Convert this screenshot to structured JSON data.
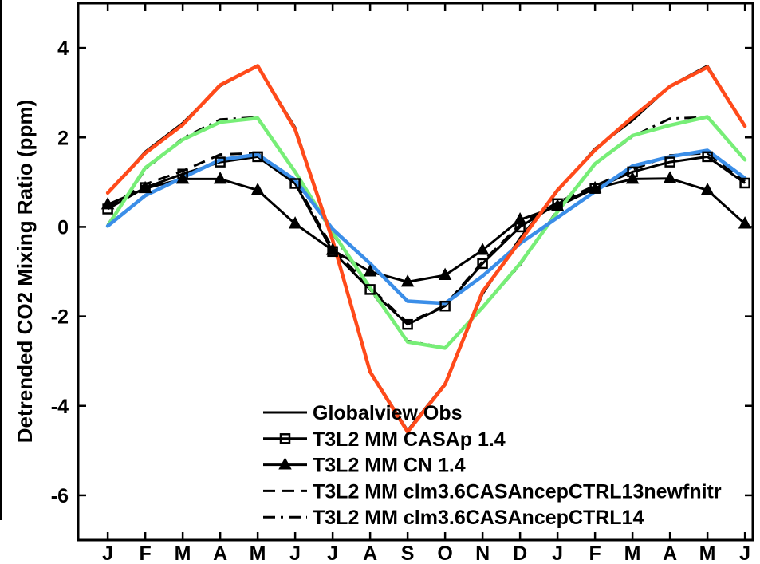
{
  "chart_data": {
    "type": "line",
    "categories": [
      "J",
      "F",
      "M",
      "A",
      "M",
      "J",
      "J",
      "A",
      "S",
      "O",
      "N",
      "D",
      "J",
      "F",
      "M",
      "A",
      "M",
      "J"
    ],
    "ylabel": "Detrended CO2 Mixing Ratio (ppm)",
    "ylim": [
      -7,
      5
    ],
    "yticks": [
      -6,
      -4,
      -2,
      0,
      2,
      4
    ],
    "grid": false,
    "legend": "lower-right",
    "series": [
      {
        "name": "Globalview Obs",
        "color": "#000000",
        "line_style": "solid",
        "marker": "none",
        "values": [
          0.75,
          1.68,
          2.32,
          3.15,
          3.6,
          2.22,
          -0.28,
          -3.22,
          -4.55,
          -3.5,
          -1.5,
          -0.25,
          0.8,
          1.75,
          2.38,
          3.15,
          3.6,
          2.25
        ]
      },
      {
        "name": "T3L2 MM CASAp 1.4",
        "color": "#000000",
        "line_style": "solid",
        "marker": "square",
        "values": [
          0.4,
          0.88,
          1.18,
          1.45,
          1.57,
          0.97,
          -0.55,
          -1.4,
          -2.18,
          -1.77,
          -0.82,
          0.0,
          0.52,
          0.86,
          1.23,
          1.45,
          1.57,
          0.98
        ]
      },
      {
        "name": "T3L2 MM CN 1.4",
        "color": "#000000",
        "line_style": "solid",
        "marker": "triangle",
        "values": [
          0.5,
          0.86,
          1.07,
          1.07,
          0.82,
          0.07,
          -0.52,
          -1.0,
          -1.23,
          -1.08,
          -0.52,
          0.16,
          0.46,
          0.86,
          1.07,
          1.08,
          0.82,
          0.07
        ]
      },
      {
        "name": "T3L2 MM clm3.6CASAncepCTRL13newfnitr",
        "color": "#000000",
        "line_style": "dashed",
        "marker": "none",
        "values": [
          0.45,
          0.95,
          1.25,
          1.62,
          1.65,
          1.02,
          -0.48,
          -1.35,
          -2.15,
          -1.75,
          -0.78,
          0.05,
          0.55,
          0.92,
          1.28,
          1.6,
          1.65,
          1.02
        ]
      },
      {
        "name": "T3L2 MM clm3.6CASAncepCTRL14",
        "color": "#000000",
        "line_style": "dashdot",
        "marker": "none",
        "values": [
          0.05,
          1.28,
          1.98,
          2.4,
          2.45,
          1.22,
          -0.15,
          -1.4,
          -2.55,
          -2.7,
          -1.8,
          -0.85,
          0.38,
          1.4,
          2.02,
          2.42,
          2.45,
          1.5
        ]
      },
      {
        "color": "#77ee77",
        "line_style": "solid",
        "marker": "none",
        "values": [
          0.02,
          1.32,
          1.95,
          2.34,
          2.43,
          1.23,
          -0.12,
          -1.36,
          -2.57,
          -2.71,
          -1.8,
          -0.82,
          0.34,
          1.41,
          2.04,
          2.27,
          2.46,
          1.5
        ]
      },
      {
        "color": "#3b8ee8",
        "line_style": "solid",
        "marker": "none",
        "values": [
          0.02,
          0.7,
          1.1,
          1.5,
          1.62,
          1.05,
          -0.05,
          -0.82,
          -1.66,
          -1.71,
          -1.1,
          -0.37,
          0.21,
          0.79,
          1.36,
          1.57,
          1.71,
          1.09
        ]
      },
      {
        "color": "#ff4a1a",
        "line_style": "solid",
        "marker": "none",
        "values": [
          0.76,
          1.65,
          2.28,
          3.17,
          3.6,
          2.18,
          -0.3,
          -3.24,
          -4.58,
          -3.52,
          -1.45,
          -0.32,
          0.82,
          1.72,
          2.45,
          3.14,
          3.57,
          2.25
        ]
      }
    ]
  }
}
